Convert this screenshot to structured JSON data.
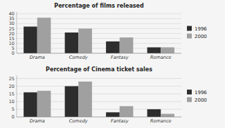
{
  "chart_data": [
    {
      "type": "bar",
      "title": "Percentage of films released",
      "categories": [
        "Drama",
        "Comedy",
        "Fantasy",
        "Romance"
      ],
      "series": [
        {
          "name": "1996",
          "color": "#2d2d2d",
          "values": [
            27,
            21,
            12,
            6
          ]
        },
        {
          "name": "2000",
          "color": "#a0a0a0",
          "values": [
            36,
            25,
            16,
            6
          ]
        }
      ],
      "ylim": [
        0,
        42
      ],
      "yticks": [
        0,
        5,
        10,
        15,
        20,
        25,
        30,
        35,
        40
      ],
      "grid": true,
      "legend": "right"
    },
    {
      "type": "bar",
      "title": "Percentage of Cinema ticket sales",
      "categories": [
        "Drama",
        "Comedy",
        "Fantasy",
        "Romance"
      ],
      "series": [
        {
          "name": "1996",
          "color": "#2d2d2d",
          "values": [
            16,
            20,
            3,
            5
          ]
        },
        {
          "name": "2000",
          "color": "#a0a0a0",
          "values": [
            17,
            23,
            7,
            2
          ]
        }
      ],
      "ylim": [
        0,
        27
      ],
      "yticks": [
        0,
        5,
        10,
        15,
        20,
        25
      ],
      "grid": true,
      "legend": "right"
    }
  ]
}
